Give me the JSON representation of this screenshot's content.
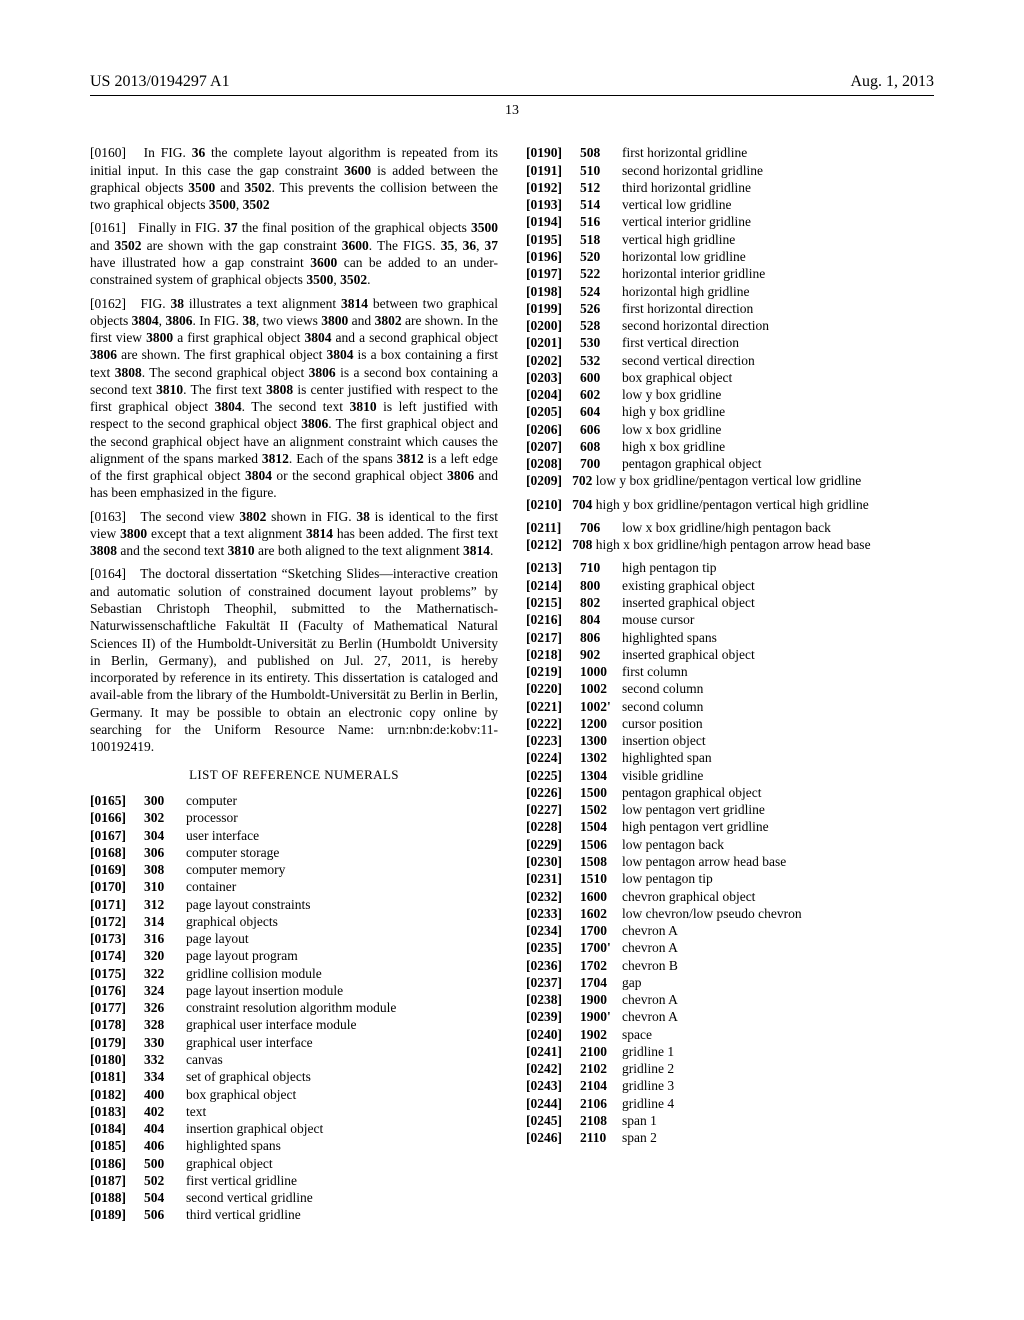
{
  "header": {
    "pub": "US 2013/0194297 A1",
    "date": "Aug. 1, 2013",
    "pagenum": "13"
  },
  "paragraphs": [
    {
      "idx": "[0160]",
      "html": "In FIG. <b>36</b> the complete layout algorithm is repeated from its initial input. In this case the gap constraint <b>3600</b> is added between the graphical objects <b>3500</b> and <b>3502</b>. This prevents the collision between the two graphical objects <b>3500</b>, <b>3502</b>"
    },
    {
      "idx": "[0161]",
      "html": "Finally in FIG. <b>37</b> the final position of the graphical objects <b>3500</b> and <b>3502</b> are shown with the gap constraint <b>3600</b>. The FIGS. <b>35</b>, <b>36</b>, <b>37</b> have illustrated how a gap constraint <b>3600</b> can be added to an under-constrained system of graphical objects <b>3500</b>, <b>3502</b>."
    },
    {
      "idx": "[0162]",
      "html": "FIG. <b>38</b> illustrates a text alignment <b>3814</b> between two graphical objects <b>3804</b>, <b>3806</b>. In FIG. <b>38</b>, two views <b>3800</b> and <b>3802</b> are shown. In the first view <b>3800</b> a first graphical object <b>3804</b> and a second graphical object <b>3806</b> are shown. The first graphical object <b>3804</b> is a box containing a first text <b>3808</b>. The second graphical object <b>3806</b> is a second box containing a second text <b>3810</b>. The first text <b>3808</b> is center justified with respect to the first graphical object <b>3804</b>. The second text <b>3810</b> is left justified with respect to the second graphical object <b>3806</b>. The first graphical object and the second graphical object have an alignment constraint which causes the alignment of the spans marked <b>3812</b>. Each of the spans <b>3812</b> is a left edge of the first graphical object <b>3804</b> or the second graphical object <b>3806</b> and has been emphasized in the figure."
    },
    {
      "idx": "[0163]",
      "html": "The second view <b>3802</b> shown in FIG. <b>38</b> is identical to the first view <b>3800</b> except that a text alignment <b>3814</b> has been added. The first text <b>3808</b> and the second text <b>3810</b> are both aligned to the text alignment <b>3814</b>."
    },
    {
      "idx": "[0164]",
      "html": "The doctoral dissertation “Sketching Slides—interactive creation and automatic solution of constrained document layout problems” by Sebastian Christoph Theophil, submitted to the Mathernatisch-Naturwissenschaftliche Fakultät II (Faculty of Mathematical Natural Sciences II) of the Humboldt-Universität zu Berlin (Humboldt University in Berlin, Germany), and published on Jul. 27, 2011, is hereby incorporated by reference in its entirety. This dissertation is cataloged and avail-able from the library of the Humboldt-Universität zu Berlin in Berlin, Germany. It may be possible to obtain an electronic copy online by searching for the Uniform Resource Name: urn:nbn:de:kobv:11-100192419."
    }
  ],
  "list_heading": "LIST OF REFERENCE NUMERALS",
  "refs": [
    {
      "idx": "[0165]",
      "num": "300",
      "desc": "computer"
    },
    {
      "idx": "[0166]",
      "num": "302",
      "desc": "processor"
    },
    {
      "idx": "[0167]",
      "num": "304",
      "desc": "user interface"
    },
    {
      "idx": "[0168]",
      "num": "306",
      "desc": "computer storage"
    },
    {
      "idx": "[0169]",
      "num": "308",
      "desc": "computer memory"
    },
    {
      "idx": "[0170]",
      "num": "310",
      "desc": "container"
    },
    {
      "idx": "[0171]",
      "num": "312",
      "desc": "page layout constraints"
    },
    {
      "idx": "[0172]",
      "num": "314",
      "desc": "graphical objects"
    },
    {
      "idx": "[0173]",
      "num": "316",
      "desc": "page layout"
    },
    {
      "idx": "[0174]",
      "num": "320",
      "desc": "page layout program"
    },
    {
      "idx": "[0175]",
      "num": "322",
      "desc": "gridline collision module"
    },
    {
      "idx": "[0176]",
      "num": "324",
      "desc": "page layout insertion module"
    },
    {
      "idx": "[0177]",
      "num": "326",
      "desc": "constraint resolution algorithm module"
    },
    {
      "idx": "[0178]",
      "num": "328",
      "desc": "graphical user interface module"
    },
    {
      "idx": "[0179]",
      "num": "330",
      "desc": "graphical user interface"
    },
    {
      "idx": "[0180]",
      "num": "332",
      "desc": "canvas"
    },
    {
      "idx": "[0181]",
      "num": "334",
      "desc": "set of graphical objects"
    },
    {
      "idx": "[0182]",
      "num": "400",
      "desc": "box graphical object"
    },
    {
      "idx": "[0183]",
      "num": "402",
      "desc": "text"
    },
    {
      "idx": "[0184]",
      "num": "404",
      "desc": "insertion graphical object"
    },
    {
      "idx": "[0185]",
      "num": "406",
      "desc": "highlighted spans"
    },
    {
      "idx": "[0186]",
      "num": "500",
      "desc": "graphical object"
    },
    {
      "idx": "[0187]",
      "num": "502",
      "desc": "first vertical gridline"
    },
    {
      "idx": "[0188]",
      "num": "504",
      "desc": "second vertical gridline"
    },
    {
      "idx": "[0189]",
      "num": "506",
      "desc": "third vertical gridline"
    },
    {
      "idx": "[0190]",
      "num": "508",
      "desc": "first horizontal gridline"
    },
    {
      "idx": "[0191]",
      "num": "510",
      "desc": "second horizontal gridline"
    },
    {
      "idx": "[0192]",
      "num": "512",
      "desc": "third horizontal gridline"
    },
    {
      "idx": "[0193]",
      "num": "514",
      "desc": "vertical low gridline"
    },
    {
      "idx": "[0194]",
      "num": "516",
      "desc": "vertical interior gridline"
    },
    {
      "idx": "[0195]",
      "num": "518",
      "desc": "vertical high gridline"
    },
    {
      "idx": "[0196]",
      "num": "520",
      "desc": "horizontal low gridline"
    },
    {
      "idx": "[0197]",
      "num": "522",
      "desc": "horizontal interior gridline"
    },
    {
      "idx": "[0198]",
      "num": "524",
      "desc": "horizontal high gridline"
    },
    {
      "idx": "[0199]",
      "num": "526",
      "desc": "first horizontal direction"
    },
    {
      "idx": "[0200]",
      "num": "528",
      "desc": "second horizontal direction"
    },
    {
      "idx": "[0201]",
      "num": "530",
      "desc": "first vertical direction"
    },
    {
      "idx": "[0202]",
      "num": "532",
      "desc": "second vertical direction"
    },
    {
      "idx": "[0203]",
      "num": "600",
      "desc": "box graphical object"
    },
    {
      "idx": "[0204]",
      "num": "602",
      "desc": "low y box gridline"
    },
    {
      "idx": "[0205]",
      "num": "604",
      "desc": "high y box gridline"
    },
    {
      "idx": "[0206]",
      "num": "606",
      "desc": "low x box gridline"
    },
    {
      "idx": "[0207]",
      "num": "608",
      "desc": "high x box gridline"
    },
    {
      "idx": "[0208]",
      "num": "700",
      "desc": "pentagon graphical object"
    },
    {
      "idx": "[0209]",
      "num": "702",
      "desc": "low y box gridline/pentagon vertical low gridline",
      "wrap": true
    },
    {
      "idx": "[0210]",
      "num": "704",
      "desc": "high y box gridline/pentagon vertical high gridline",
      "wrap": true
    },
    {
      "idx": "[0211]",
      "num": "706",
      "desc": "low x box gridline/high pentagon back"
    },
    {
      "idx": "[0212]",
      "num": "708",
      "desc": "high x box gridline/high pentagon arrow head base",
      "wrap": true
    },
    {
      "idx": "[0213]",
      "num": "710",
      "desc": "high pentagon tip"
    },
    {
      "idx": "[0214]",
      "num": "800",
      "desc": "existing graphical object"
    },
    {
      "idx": "[0215]",
      "num": "802",
      "desc": "inserted graphical object"
    },
    {
      "idx": "[0216]",
      "num": "804",
      "desc": "mouse cursor"
    },
    {
      "idx": "[0217]",
      "num": "806",
      "desc": "highlighted spans"
    },
    {
      "idx": "[0218]",
      "num": "902",
      "desc": "inserted graphical object"
    },
    {
      "idx": "[0219]",
      "num": "1000",
      "desc": "first column"
    },
    {
      "idx": "[0220]",
      "num": "1002",
      "desc": "second column"
    },
    {
      "idx": "[0221]",
      "num": "1002'",
      "desc": "second column"
    },
    {
      "idx": "[0222]",
      "num": "1200",
      "desc": "cursor position"
    },
    {
      "idx": "[0223]",
      "num": "1300",
      "desc": "insertion object"
    },
    {
      "idx": "[0224]",
      "num": "1302",
      "desc": "highlighted span"
    },
    {
      "idx": "[0225]",
      "num": "1304",
      "desc": "visible gridline"
    },
    {
      "idx": "[0226]",
      "num": "1500",
      "desc": "pentagon graphical object"
    },
    {
      "idx": "[0227]",
      "num": "1502",
      "desc": "low pentagon vert gridline"
    },
    {
      "idx": "[0228]",
      "num": "1504",
      "desc": "high pentagon vert gridline"
    },
    {
      "idx": "[0229]",
      "num": "1506",
      "desc": "low pentagon back"
    },
    {
      "idx": "[0230]",
      "num": "1508",
      "desc": "low pentagon arrow head base"
    },
    {
      "idx": "[0231]",
      "num": "1510",
      "desc": "low pentagon tip"
    },
    {
      "idx": "[0232]",
      "num": "1600",
      "desc": "chevron graphical object"
    },
    {
      "idx": "[0233]",
      "num": "1602",
      "desc": "low chevron/low pseudo chevron"
    },
    {
      "idx": "[0234]",
      "num": "1700",
      "desc": "chevron A"
    },
    {
      "idx": "[0235]",
      "num": "1700'",
      "desc": "chevron A"
    },
    {
      "idx": "[0236]",
      "num": "1702",
      "desc": "chevron B"
    },
    {
      "idx": "[0237]",
      "num": "1704",
      "desc": "gap"
    },
    {
      "idx": "[0238]",
      "num": "1900",
      "desc": "chevron A"
    },
    {
      "idx": "[0239]",
      "num": "1900'",
      "desc": "chevron A"
    },
    {
      "idx": "[0240]",
      "num": "1902",
      "desc": "space"
    },
    {
      "idx": "[0241]",
      "num": "2100",
      "desc": "gridline 1"
    },
    {
      "idx": "[0242]",
      "num": "2102",
      "desc": "gridline 2"
    },
    {
      "idx": "[0243]",
      "num": "2104",
      "desc": "gridline 3"
    },
    {
      "idx": "[0244]",
      "num": "2106",
      "desc": "gridline 4"
    },
    {
      "idx": "[0245]",
      "num": "2108",
      "desc": "span 1"
    },
    {
      "idx": "[0246]",
      "num": "2110",
      "desc": "span 2"
    }
  ]
}
